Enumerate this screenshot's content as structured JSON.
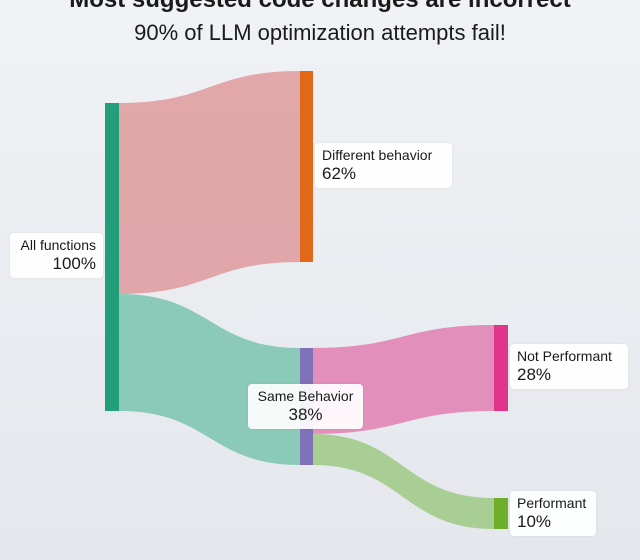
{
  "header": {
    "partial_title": "Most suggested code changes are incorrect",
    "subtitle": "90% of LLM optimization attempts fail!"
  },
  "diagram": {
    "type": "sankey",
    "nodes": [
      {
        "id": "all",
        "name": "All functions",
        "percent": "100%",
        "color": "#239e7a"
      },
      {
        "id": "diff",
        "name": "Different behavior",
        "percent": "62%",
        "color": "#e06818"
      },
      {
        "id": "same",
        "name": "Same Behavior",
        "percent": "38%",
        "color": "#7f72b8"
      },
      {
        "id": "notperf",
        "name": "Not Performant",
        "percent": "28%",
        "color": "#e0358a"
      },
      {
        "id": "perf",
        "name": "Performant",
        "percent": "10%",
        "color": "#6fae28"
      }
    ],
    "links": [
      {
        "source": "all",
        "target": "diff",
        "value": 62,
        "color": "#dfa2a4"
      },
      {
        "source": "all",
        "target": "same",
        "value": 38,
        "color": "#86c7b5"
      },
      {
        "source": "same",
        "target": "notperf",
        "value": 28,
        "color": "#e28ab8"
      },
      {
        "source": "same",
        "target": "perf",
        "value": 10,
        "color": "#a5cc8e"
      }
    ]
  }
}
